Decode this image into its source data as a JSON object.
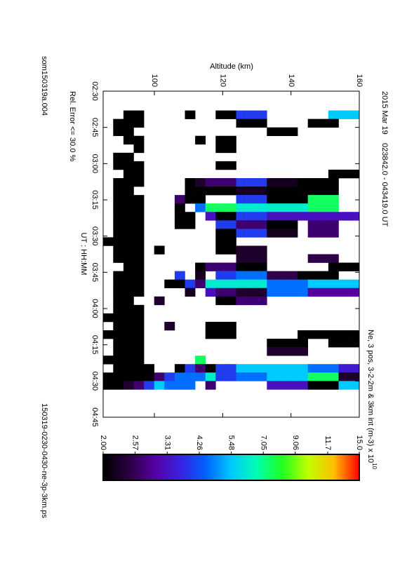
{
  "chart_data": {
    "type": "heatmap",
    "title": "2015 Mar 19    023842.0 - 043419.0 UT",
    "subtitle": "Ne, 3 pos, 3-2-2m & 3km int (m-3) x 10",
    "title_exponent": "10",
    "xlabel": "UT : HH:MM",
    "ylabel": "Altitude (km)",
    "annotation": "Rel. Error <= 30.0 %",
    "footer_left": "som150319a.004",
    "footer_right": "150319-0230-0430-ne-3p-3km.ps",
    "xlim": [
      150,
      285
    ],
    "xticks": [
      {
        "value": 150,
        "label": "02:30"
      },
      {
        "value": 165,
        "label": "02:45"
      },
      {
        "value": 180,
        "label": "03:00"
      },
      {
        "value": 195,
        "label": "03:15"
      },
      {
        "value": 210,
        "label": "03:30"
      },
      {
        "value": 225,
        "label": "03:45"
      },
      {
        "value": 240,
        "label": "04:00"
      },
      {
        "value": 255,
        "label": "04:15"
      },
      {
        "value": 270,
        "label": "04:30"
      },
      {
        "value": 285,
        "label": "04:45"
      }
    ],
    "ylim": [
      85,
      160
    ],
    "yticks": [
      100,
      120,
      140,
      160
    ],
    "clim": [
      2,
      15
    ],
    "cticks": [
      {
        "value": 2,
        "label": "2.00"
      },
      2.57,
      3.31,
      4.26,
      5.48,
      7.05,
      9.06,
      11.7,
      {
        "value": 15,
        "label": "15.0"
      }
    ],
    "color_scale": "log",
    "colormap": [
      "#000000",
      "#2a0040",
      "#5500a0",
      "#3a20e0",
      "#0060ff",
      "#00c8ff",
      "#00ffb0",
      "#20ff20",
      "#c0ff00",
      "#ffc000",
      "#ff0000"
    ],
    "xbins": [
      158,
      161.5,
      165,
      168.5,
      172,
      175.5,
      179,
      182.5,
      186,
      189.5,
      193,
      196.5,
      200,
      203.5,
      207,
      210.5,
      214,
      217.5,
      221,
      224.5,
      228,
      231.5,
      235,
      238.5,
      242,
      245.5,
      249,
      252.5,
      256,
      259.5,
      263,
      266.5,
      270,
      273.5
    ],
    "ybins": [
      85,
      88,
      91,
      94,
      97,
      100,
      103,
      106,
      109,
      112,
      115,
      118,
      121,
      124,
      127,
      130,
      133,
      136,
      139,
      142,
      145,
      148,
      151,
      154,
      157,
      160
    ],
    "values": [
      [
        null,
        null,
        2,
        2,
        null,
        null,
        null,
        null,
        2,
        null,
        null,
        2,
        2,
        4,
        4,
        4,
        null,
        null,
        null,
        null,
        null,
        null,
        5.5,
        5.5,
        5.5
      ],
      [
        null,
        2,
        2,
        2,
        null,
        null,
        null,
        null,
        null,
        null,
        null,
        null,
        null,
        2,
        2,
        2,
        null,
        null,
        null,
        null,
        2,
        2,
        2,
        null,
        null
      ],
      [
        null,
        2,
        2,
        null,
        null,
        null,
        null,
        null,
        null,
        null,
        null,
        null,
        null,
        null,
        null,
        null,
        2,
        2,
        2,
        null,
        null,
        null,
        null,
        null,
        null
      ],
      [
        null,
        null,
        2,
        2,
        null,
        null,
        null,
        null,
        null,
        2,
        null,
        2,
        2,
        null,
        null,
        null,
        null,
        null,
        null,
        null,
        null,
        null,
        null,
        null,
        null
      ],
      [
        null,
        null,
        null,
        2,
        null,
        null,
        null,
        null,
        null,
        null,
        null,
        2,
        2,
        null,
        null,
        null,
        null,
        null,
        null,
        null,
        null,
        null,
        null,
        null,
        null
      ],
      [
        null,
        2,
        2,
        null,
        null,
        null,
        null,
        null,
        null,
        null,
        null,
        null,
        null,
        null,
        null,
        null,
        null,
        null,
        null,
        null,
        null,
        null,
        null,
        null,
        null
      ],
      [
        null,
        2,
        2,
        2,
        null,
        null,
        null,
        null,
        null,
        null,
        null,
        2,
        2,
        null,
        null,
        null,
        null,
        null,
        null,
        null,
        null,
        null,
        null,
        null,
        null
      ],
      [
        null,
        null,
        2,
        2,
        null,
        null,
        null,
        null,
        null,
        null,
        null,
        null,
        null,
        null,
        null,
        null,
        null,
        null,
        null,
        null,
        null,
        null,
        2,
        2,
        2
      ],
      [
        null,
        2,
        2,
        2,
        null,
        null,
        null,
        null,
        2,
        2.3,
        2.7,
        2.7,
        2.7,
        4,
        4,
        4,
        2.2,
        2.2,
        2.2,
        2,
        2,
        2,
        2,
        null,
        null
      ],
      [
        null,
        2,
        2,
        null,
        null,
        null,
        null,
        null,
        2,
        2,
        2,
        2,
        2,
        2.2,
        2.2,
        2.2,
        2,
        2,
        2,
        2,
        2,
        2,
        2,
        null,
        null
      ],
      [
        null,
        2,
        2,
        2,
        null,
        null,
        null,
        2.7,
        2,
        2,
        null,
        null,
        null,
        4,
        4,
        4,
        2,
        2,
        2,
        2,
        7.5,
        7.5,
        7.5,
        null,
        null
      ],
      [
        null,
        2,
        2,
        2,
        null,
        null,
        null,
        2,
        null,
        4.6,
        7.5,
        7.5,
        7.5,
        6.2,
        6.2,
        6.2,
        6.2,
        6.2,
        6.2,
        6.2,
        7.5,
        7.5,
        7.5,
        null,
        null
      ],
      [
        null,
        2,
        2,
        2,
        null,
        null,
        null,
        2,
        2,
        null,
        3.3,
        2,
        2,
        4,
        4,
        4,
        3.3,
        3.3,
        3.3,
        3.3,
        3.3,
        3.3,
        3.3,
        3.3,
        3.3
      ],
      [
        null,
        2,
        2,
        2,
        null,
        null,
        null,
        2,
        2,
        null,
        null,
        4,
        4,
        2.7,
        2.7,
        2.7,
        2,
        2,
        2,
        null,
        2.7,
        2.7,
        2.7,
        null,
        null
      ],
      [
        null,
        2,
        2,
        2,
        null,
        null,
        null,
        null,
        null,
        null,
        null,
        2,
        2,
        4,
        4,
        4,
        2.2,
        2.2,
        2.2,
        null,
        2.7,
        2.7,
        2.7,
        null,
        null
      ],
      [
        2,
        2,
        2,
        2,
        null,
        null,
        null,
        null,
        null,
        null,
        null,
        2,
        2,
        null,
        null,
        null,
        null,
        null,
        null,
        null,
        null,
        null,
        null,
        null,
        null
      ],
      [
        null,
        2,
        2,
        2,
        null,
        2,
        null,
        null,
        null,
        null,
        null,
        2,
        2,
        2.3,
        2.3,
        2.3,
        null,
        null,
        null,
        null,
        null,
        null,
        null,
        null,
        null
      ],
      [
        null,
        2,
        2,
        2,
        null,
        null,
        null,
        null,
        null,
        null,
        null,
        null,
        null,
        2.3,
        2.3,
        2.3,
        null,
        null,
        null,
        null,
        2.5,
        2.5,
        2.5,
        null,
        null
      ],
      [
        null,
        null,
        2,
        2,
        null,
        null,
        null,
        null,
        null,
        2,
        2.7,
        2.7,
        2.7,
        2,
        2,
        2,
        null,
        null,
        null,
        null,
        null,
        null,
        2,
        2,
        2
      ],
      [
        null,
        2,
        2,
        2,
        null,
        null,
        null,
        4,
        null,
        2.2,
        null,
        4,
        4,
        4.6,
        4.6,
        4.6,
        2.5,
        2.5,
        2.5,
        2,
        2,
        2,
        2,
        null,
        null
      ],
      [
        null,
        2,
        2,
        2,
        null,
        null,
        2,
        2,
        4,
        2.7,
        6.2,
        6.2,
        6.2,
        6.2,
        6.2,
        6.2,
        4.6,
        4.6,
        4.6,
        4.6,
        5.5,
        5.5,
        5.5,
        5.5,
        5.5
      ],
      [
        null,
        2,
        2,
        2,
        null,
        null,
        null,
        null,
        2.2,
        null,
        3.3,
        2.7,
        2.7,
        2.3,
        2.3,
        2.3,
        4.6,
        4.6,
        4.6,
        4.6,
        3,
        3,
        3,
        3,
        3
      ],
      [
        null,
        2,
        2,
        null,
        null,
        2.3,
        null,
        null,
        null,
        null,
        null,
        2,
        2,
        2.7,
        2.7,
        2.7,
        null,
        null,
        null,
        null,
        null,
        null,
        null,
        null,
        null
      ],
      [
        null,
        2,
        2,
        2,
        null,
        null,
        null,
        null,
        null,
        null,
        null,
        null,
        null,
        null,
        null,
        null,
        null,
        null,
        null,
        null,
        null,
        null,
        null,
        null,
        null
      ],
      [
        2,
        2,
        2,
        2,
        null,
        null,
        null,
        null,
        null,
        null,
        null,
        null,
        null,
        null,
        null,
        null,
        null,
        null,
        null,
        null,
        null,
        null,
        null,
        null,
        null
      ],
      [
        null,
        2,
        2,
        2,
        null,
        null,
        2.3,
        null,
        null,
        null,
        2,
        2,
        2,
        null,
        null,
        null,
        null,
        null,
        null,
        null,
        null,
        null,
        null,
        null,
        null
      ],
      [
        2,
        2,
        2,
        2,
        null,
        null,
        null,
        null,
        null,
        null,
        2,
        2,
        2,
        null,
        null,
        null,
        null,
        null,
        null,
        2,
        2,
        2,
        2,
        2,
        2
      ],
      [
        null,
        2,
        2,
        2,
        null,
        null,
        null,
        null,
        null,
        null,
        null,
        null,
        null,
        null,
        null,
        null,
        2,
        2,
        2,
        2,
        null,
        null,
        2,
        2,
        2
      ],
      [
        null,
        2,
        2,
        2,
        null,
        null,
        null,
        null,
        null,
        null,
        null,
        null,
        null,
        null,
        null,
        null,
        2.3,
        2.3,
        2.3,
        2.3,
        null,
        null,
        null,
        null,
        null
      ],
      [
        2,
        2,
        2,
        2,
        null,
        null,
        null,
        null,
        null,
        7.5,
        null,
        null,
        null,
        null,
        null,
        null,
        null,
        null,
        null,
        null,
        null,
        null,
        null,
        null,
        null
      ],
      [
        null,
        2,
        2,
        2,
        2,
        null,
        null,
        2,
        4,
        2.7,
        2,
        4,
        4,
        5.5,
        5.5,
        5.5,
        5.5,
        5.5,
        5.5,
        5.5,
        4.6,
        4.6,
        4.6,
        3.5,
        3.5
      ],
      [
        2,
        2,
        2,
        2,
        2,
        2.7,
        4,
        4.6,
        4.6,
        4.6,
        6.2,
        4,
        4,
        4.6,
        4.6,
        4.6,
        5.5,
        5.5,
        5.5,
        5.5,
        7.5,
        7.5,
        7.5,
        2.3,
        2.3
      ],
      [
        2,
        2,
        2.3,
        2.7,
        4,
        5.5,
        4.6,
        4.6,
        4.6,
        null,
        2.7,
        null,
        null,
        null,
        null,
        null,
        3.3,
        3.3,
        3.3,
        3.3,
        2,
        2,
        2,
        5.5,
        5.5
      ]
    ]
  }
}
